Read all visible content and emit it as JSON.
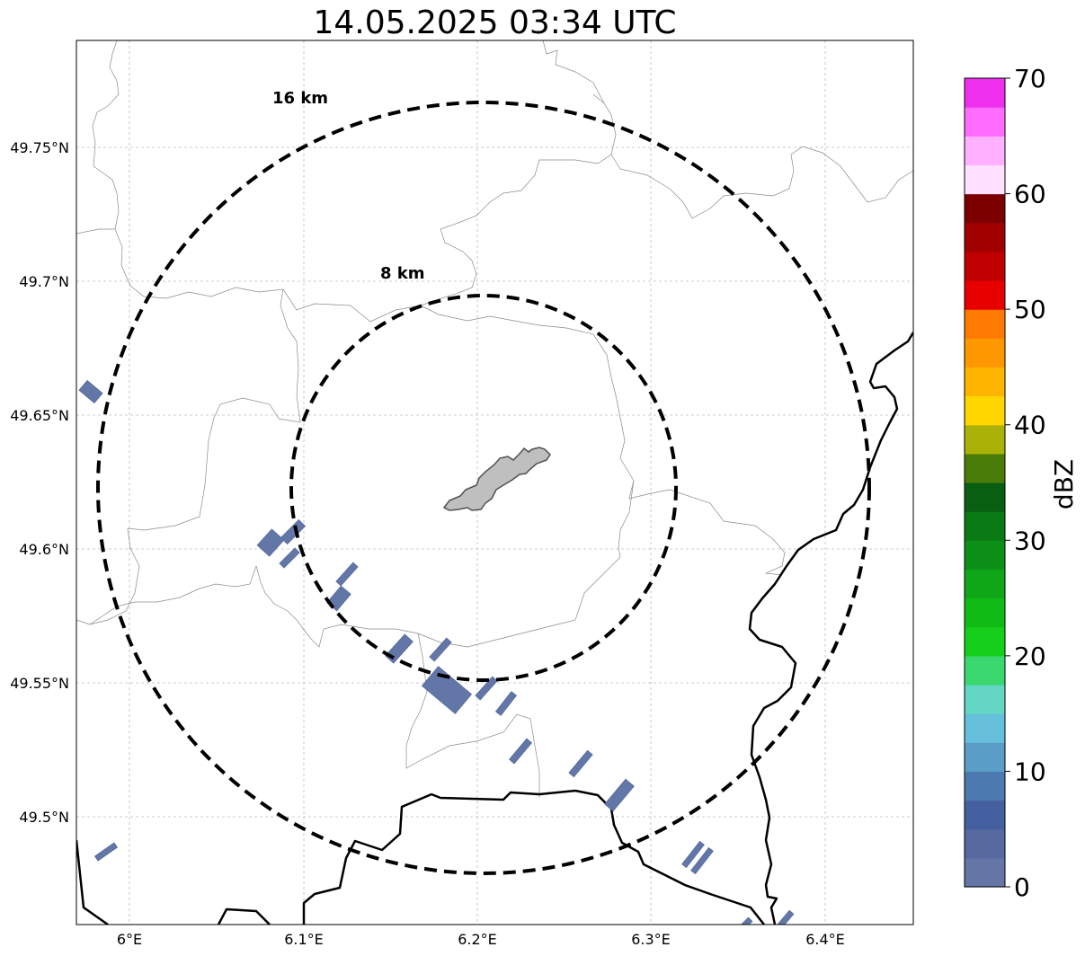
{
  "title": "14.05.2025 03:34 UTC",
  "map": {
    "lat_ticks": [
      "49.75°N",
      "49.7°N",
      "49.65°N",
      "49.6°N",
      "49.55°N",
      "49.5°N"
    ],
    "lon_ticks": [
      "6°E",
      "6.1°E",
      "6.2°E",
      "6.3°E",
      "6.4°E"
    ],
    "rings": [
      {
        "label": "16 km",
        "radius_km": 16
      },
      {
        "label": "8 km",
        "radius_km": 8
      }
    ],
    "center": {
      "lat": 49.62,
      "lon": 6.2
    },
    "echo_color": "#6276a8",
    "ring_color": "#000000",
    "city_fill": "#bfbfbf"
  },
  "colorbar": {
    "label": "dBZ",
    "ticks": [
      "0",
      "10",
      "20",
      "30",
      "40",
      "50",
      "60",
      "70"
    ],
    "min": 0,
    "max": 70,
    "colors": [
      "#6576a6",
      "#566aa0",
      "#4560a0",
      "#4c7ab0",
      "#5a9ec8",
      "#66c0dc",
      "#63d7c3",
      "#3bd870",
      "#15cf1a",
      "#10bb16",
      "#0fa718",
      "#0c8f16",
      "#0a7a14",
      "#085f12",
      "#4a7c0a",
      "#aab208",
      "#ffd600",
      "#ffb400",
      "#ff9800",
      "#ff7a00",
      "#e80000",
      "#c00000",
      "#a20000",
      "#7c0000",
      "#ffe0ff",
      "#ffb0ff",
      "#ff6cff",
      "#ee30ee"
    ]
  }
}
